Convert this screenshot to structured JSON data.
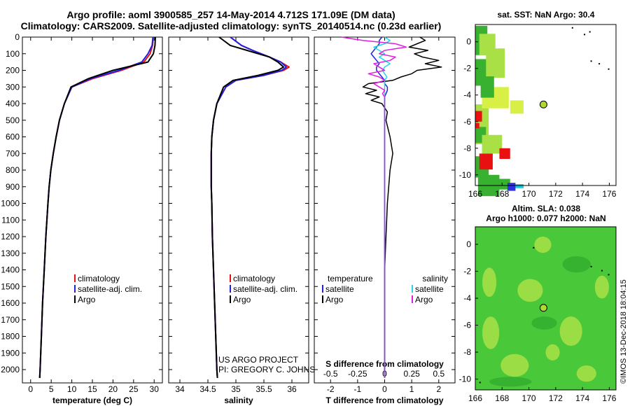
{
  "header": {
    "line1": "Argo profile: aoml 3900585_257 14-May-2014 4.712S 171.09E (DM data)",
    "line2": "Climatology: CARS2009. Satellite-adjusted climatology: synTS_20140514.nc (0.23d earlier)"
  },
  "colors": {
    "climatology": "#e81010",
    "satellite": "#2020e0",
    "argo": "#000000",
    "argo_sal_diff": "#e020e0",
    "sat_sal_diff": "#20d8e8"
  },
  "chart_data": [
    {
      "type": "line",
      "panel": "temperature",
      "xlabel": "temperature (deg C)",
      "xlim": [
        -2,
        32
      ],
      "xticks": [
        0,
        5,
        10,
        15,
        20,
        25,
        30
      ],
      "ylim": [
        2080,
        0
      ],
      "yticks": [
        0,
        100,
        200,
        300,
        400,
        500,
        600,
        700,
        800,
        900,
        1000,
        1100,
        1200,
        1300,
        1400,
        1500,
        1600,
        1700,
        1800,
        1900,
        2000
      ],
      "legend": [
        "climatology",
        "satellite-adj. clim.",
        "Argo"
      ],
      "legend_position": "lower-right",
      "depth": [
        0,
        50,
        100,
        150,
        200,
        250,
        300,
        400,
        500,
        600,
        700,
        800,
        900,
        1000,
        1200,
        1400,
        1600,
        1800,
        2000,
        2050
      ],
      "series": [
        {
          "name": "climatology",
          "values": [
            29.8,
            29.6,
            29.0,
            27.5,
            22.0,
            15.0,
            10.0,
            8.2,
            7.0,
            6.2,
            5.5,
            4.9,
            4.5,
            4.2,
            3.7,
            3.3,
            2.9,
            2.6,
            2.3,
            2.2
          ]
        },
        {
          "name": "satellite-adj. clim.",
          "values": [
            29.7,
            29.5,
            28.5,
            27.0,
            21.5,
            14.5,
            10.0,
            8.2,
            7.0,
            6.2,
            5.5,
            4.9,
            4.5,
            4.2,
            3.7,
            3.3,
            2.9,
            2.6,
            2.3,
            2.2
          ]
        },
        {
          "name": "Argo",
          "values": [
            30.3,
            30.2,
            29.8,
            28.5,
            20.0,
            14.0,
            9.8,
            8.2,
            7.0,
            6.2,
            5.5,
            4.9,
            4.5,
            4.2,
            3.7,
            3.3,
            2.9,
            2.6,
            2.3,
            2.2
          ]
        }
      ]
    },
    {
      "type": "line",
      "panel": "salinity",
      "xlabel": "salinity",
      "xlim": [
        33.8,
        36.3
      ],
      "xticks": [
        34,
        34.5,
        35,
        35.5,
        36
      ],
      "ylim": [
        2080,
        0
      ],
      "legend": [
        "climatology",
        "satellite-adj. clim.",
        "Argo"
      ],
      "legend_position": "lower-right",
      "annotation": [
        "US ARGO PROJECT",
        "PI: GREGORY C. JOHNSON"
      ],
      "depth": [
        0,
        50,
        80,
        120,
        150,
        180,
        200,
        230,
        260,
        300,
        400,
        500,
        600,
        700,
        800,
        900,
        1000,
        1200,
        1400,
        1600,
        1800,
        2000,
        2050
      ],
      "series": [
        {
          "name": "climatology",
          "values": [
            34.9,
            35.1,
            35.3,
            35.6,
            35.8,
            35.95,
            35.85,
            35.5,
            35.0,
            34.82,
            34.66,
            34.6,
            34.57,
            34.56,
            34.56,
            34.56,
            34.57,
            34.58,
            34.6,
            34.62,
            34.64,
            34.66,
            34.67
          ]
        },
        {
          "name": "satellite-adj. clim.",
          "values": [
            34.9,
            35.1,
            35.3,
            35.6,
            35.8,
            35.9,
            35.82,
            35.5,
            35.0,
            34.82,
            34.66,
            34.6,
            34.57,
            34.56,
            34.56,
            34.56,
            34.57,
            34.58,
            34.6,
            34.62,
            34.64,
            34.66,
            34.67
          ]
        },
        {
          "name": "Argo",
          "values": [
            34.7,
            34.9,
            35.2,
            35.6,
            35.75,
            35.85,
            35.75,
            35.4,
            34.95,
            34.78,
            34.66,
            34.6,
            34.57,
            34.56,
            34.56,
            34.56,
            34.57,
            34.58,
            34.6,
            34.62,
            34.64,
            34.66,
            34.67
          ]
        }
      ]
    },
    {
      "type": "line",
      "panel": "difference",
      "xlabel": "T difference from climatology",
      "xlabel_top": "S difference from climatology",
      "xlim_T": [
        -2.6,
        2.6
      ],
      "xticks_T": [
        -2,
        -1,
        0,
        1,
        2
      ],
      "xticks_S": [
        "-0.5",
        "-0.25",
        "0",
        "0.25",
        "0.5"
      ],
      "ylim": [
        2080,
        0
      ],
      "legend_left_title": "temperature",
      "legend_right_title": "salinity",
      "legend": [
        "satellite",
        "Argo"
      ],
      "depth": [
        0,
        20,
        40,
        60,
        80,
        100,
        120,
        140,
        160,
        180,
        200,
        220,
        240,
        260,
        280,
        300,
        320,
        340,
        360,
        380,
        400,
        450,
        500,
        600,
        700,
        800,
        900,
        1000,
        1200,
        1400,
        1600,
        1800,
        2000,
        2050
      ],
      "series": [
        {
          "name": "T satellite",
          "values": [
            -0.1,
            -0.2,
            -0.2,
            -0.3,
            -0.4,
            -0.5,
            -0.4,
            -0.3,
            -0.2,
            -0.3,
            -0.3,
            -0.2,
            -0.1,
            0.0,
            0.0,
            0.1,
            0.1,
            0.05,
            0.0,
            0.0,
            0.0,
            0.0,
            0.0,
            0.0,
            0.0,
            0.0,
            0.0,
            0.0,
            0.0,
            0.0,
            0.0,
            0.0,
            0.0,
            0.0
          ]
        },
        {
          "name": "T Argo",
          "values": [
            1.3,
            1.5,
            1.2,
            0.9,
            1.6,
            1.1,
            1.4,
            2.0,
            1.5,
            2.1,
            1.2,
            1.0,
            0.6,
            0.3,
            -0.6,
            -0.8,
            -0.3,
            -0.7,
            -0.2,
            -0.5,
            -0.1,
            0.1,
            0.05,
            0.2,
            0.3,
            0.2,
            0.15,
            0.1,
            0.05,
            0.0,
            0.0,
            0.0,
            0.0,
            0.0
          ]
        },
        {
          "name": "S satellite",
          "values": [
            0.0,
            0.05,
            0.0,
            -0.1,
            -0.05,
            0.0,
            -0.05,
            0.0,
            0.05,
            0.0,
            -0.02,
            0.0,
            0.02,
            0.0,
            0.0,
            0.0,
            0.0,
            0.0,
            0.0,
            0.0,
            0.0,
            0.0,
            0.0,
            0.0,
            0.0,
            0.0,
            0.0,
            0.0,
            0.0,
            0.0,
            0.0,
            0.0,
            0.0,
            0.0
          ]
        },
        {
          "name": "S Argo",
          "values": [
            -0.4,
            -0.2,
            0.1,
            0.2,
            0.0,
            -0.05,
            0.1,
            0.05,
            -0.1,
            -0.05,
            0.0,
            -0.15,
            -0.05,
            0.0,
            -0.1,
            -0.05,
            0.0,
            -0.02,
            0.0,
            0.0,
            0.0,
            0.0,
            0.0,
            0.0,
            0.0,
            0.0,
            0.0,
            0.0,
            0.0,
            0.0,
            0.0,
            0.0,
            0.0,
            0.0
          ]
        }
      ]
    },
    {
      "type": "heatmap",
      "panel": "sst_map",
      "title": "sat. SST: NaN Argo: 30.4",
      "xlim": [
        166,
        176.5
      ],
      "ylim": [
        -10.8,
        1.3
      ],
      "xticks": [
        166,
        168,
        170,
        172,
        174,
        176
      ],
      "yticks": [
        0,
        -2,
        -4,
        -6,
        -8,
        -10
      ],
      "argo_position": [
        171.09,
        -4.712
      ]
    },
    {
      "type": "heatmap",
      "panel": "sla_map",
      "title_line1": "Altim. SLA: 0.038",
      "title_line2": "Argo h1000: 0.077 h2000: NaN",
      "xlim": [
        166,
        176.5
      ],
      "ylim": [
        -10.8,
        1.3
      ],
      "xticks": [
        166,
        168,
        170,
        172,
        174,
        176
      ],
      "yticks": [
        0,
        -2,
        -4,
        -6,
        -8,
        -10
      ],
      "argo_position": [
        171.09,
        -4.712
      ]
    }
  ],
  "footer_stamp": "©IMOS 13-Dec-2018 18:04:15"
}
